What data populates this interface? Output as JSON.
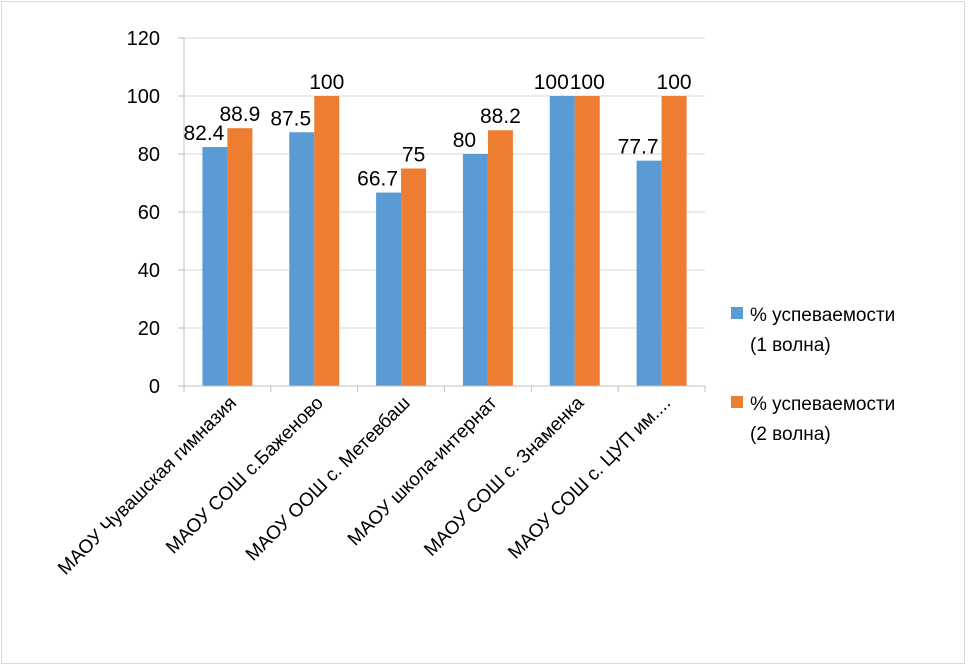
{
  "chart_data": {
    "type": "bar",
    "title": "",
    "xlabel": "",
    "ylabel": "",
    "ylim": [
      0,
      120
    ],
    "yticks": [
      0,
      20,
      40,
      60,
      80,
      100,
      120
    ],
    "grid": true,
    "legend_position": "right",
    "categories": [
      "МАОУ Чувашская гимназия",
      "МАОУ СОШ с.Баженово",
      "МАОУ ООШ с. Метевбаш",
      "МАОУ школа-интернат",
      "МАОУ СОШ с. Знаменка",
      "МАОУ СОШ с. ЦУП им...."
    ],
    "series": [
      {
        "name": "% успеваемости (1 волна)",
        "legend_lines": [
          "% успеваемости",
          "(1 волна)"
        ],
        "color": "#5b9bd5",
        "values": [
          82.4,
          87.5,
          66.7,
          80,
          100,
          77.7
        ]
      },
      {
        "name": "% успеваемости (2 волна)",
        "legend_lines": [
          "% успеваемости",
          "(2 волна)"
        ],
        "color": "#ed7d31",
        "values": [
          88.9,
          100,
          75,
          88.2,
          100,
          100
        ]
      }
    ]
  }
}
